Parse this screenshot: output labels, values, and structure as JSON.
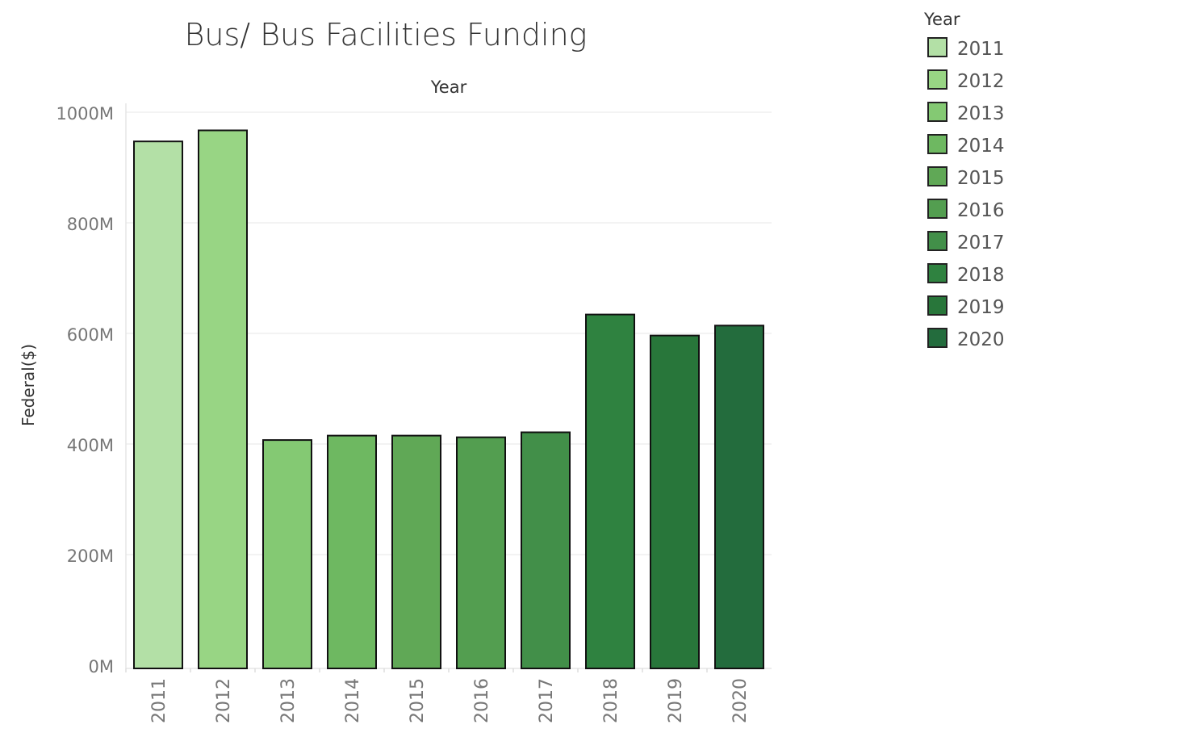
{
  "chart_data": {
    "type": "bar",
    "title": "Bus/ Bus Facilities Funding",
    "column_header": "Year",
    "ylabel": "Federal($)",
    "xlabel": "",
    "categories": [
      "2011",
      "2012",
      "2013",
      "2014",
      "2015",
      "2016",
      "2017",
      "2018",
      "2019",
      "2020"
    ],
    "values": [
      953,
      973,
      413,
      421,
      421,
      418,
      427,
      640,
      602,
      620
    ],
    "value_unit": "M",
    "ylim": [
      0,
      1000
    ],
    "yticks": [
      0,
      200,
      400,
      600,
      800,
      1000
    ],
    "ytick_labels": [
      "0M",
      "200M",
      "400M",
      "600M",
      "800M",
      "1000M"
    ],
    "grid": true,
    "colors": [
      "#b3e0a6",
      "#98d584",
      "#84c973",
      "#6eb861",
      "#60a856",
      "#539e50",
      "#428f49",
      "#2f8240",
      "#28763a",
      "#236c3d"
    ],
    "bar_stroke": "#111111",
    "legend": {
      "title": "Year",
      "placement": "top-right",
      "entries": [
        "2011",
        "2012",
        "2013",
        "2014",
        "2015",
        "2016",
        "2017",
        "2018",
        "2019",
        "2020"
      ]
    }
  }
}
